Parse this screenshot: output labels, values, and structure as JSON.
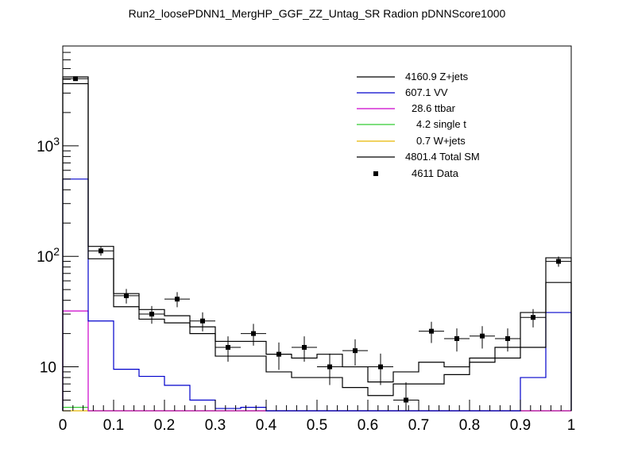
{
  "chart_data": {
    "type": "histogram",
    "title": "Run2_loosePDNN1_MergHP_GGF_ZZ_Untag_SR Radion  pDNNScore1000",
    "xlabel": "",
    "ylabel": "",
    "xlim": [
      0,
      1
    ],
    "ylim": [
      4,
      8000
    ],
    "y_scale": "log",
    "bin_edges": [
      0,
      0.05,
      0.1,
      0.15,
      0.2,
      0.25,
      0.3,
      0.35,
      0.4,
      0.45,
      0.5,
      0.55,
      0.6,
      0.65,
      0.7,
      0.75,
      0.8,
      0.85,
      0.9,
      0.95,
      1.0
    ],
    "x_ticks": [
      {
        "value": 0,
        "label": "0"
      },
      {
        "value": 0.1,
        "label": "0.1"
      },
      {
        "value": 0.2,
        "label": "0.2"
      },
      {
        "value": 0.3,
        "label": "0.3"
      },
      {
        "value": 0.4,
        "label": "0.4"
      },
      {
        "value": 0.5,
        "label": "0.5"
      },
      {
        "value": 0.6,
        "label": "0.6"
      },
      {
        "value": 0.7,
        "label": "0.7"
      },
      {
        "value": 0.8,
        "label": "0.8"
      },
      {
        "value": 0.9,
        "label": "0.9"
      },
      {
        "value": 1,
        "label": "1"
      }
    ],
    "y_ticks": [
      {
        "value": 10,
        "label": "10",
        "sup": ""
      },
      {
        "value": 100,
        "label": "10",
        "sup": "2"
      },
      {
        "value": 1000,
        "label": "10",
        "sup": "3"
      }
    ],
    "series": [
      {
        "name": "Z+jets",
        "yield": "4160.9",
        "color": "#000000",
        "values": [
          3650,
          95,
          35,
          27,
          25,
          20,
          12.5,
          12.5,
          9,
          8,
          8,
          6.5,
          5.5,
          7,
          7,
          8.5,
          11,
          12,
          15,
          58
        ]
      },
      {
        "name": "VV",
        "yield": "607.1",
        "color": "#0000cc",
        "values": [
          500,
          26,
          9.5,
          8.2,
          6.8,
          5,
          4.2,
          4.3,
          3.9,
          3.7,
          3.9,
          3.5,
          3.6,
          3.4,
          3.4,
          3.8,
          4.0,
          3.5,
          8,
          31
        ]
      },
      {
        "name": "ttbar",
        "yield": "28.6",
        "color": "#cc00cc",
        "values": [
          32,
          2,
          1.5,
          1,
          1,
          1,
          1,
          1,
          1,
          1,
          1,
          1,
          1,
          1,
          1,
          1,
          1,
          1,
          1,
          1
        ]
      },
      {
        "name": "single t",
        "yield": "4.2",
        "color": "#33cc33",
        "values": [
          4.3,
          1,
          1,
          1,
          1,
          1,
          1,
          1,
          1,
          1,
          1,
          1,
          1,
          1,
          1,
          1,
          1,
          1,
          1,
          1
        ]
      },
      {
        "name": "W+jets",
        "yield": "0.7",
        "color": "#e6b800",
        "values": [
          1,
          1,
          1,
          1,
          1,
          1,
          1,
          1,
          1,
          1,
          1,
          1,
          1,
          1,
          1,
          1,
          1,
          1,
          1,
          1
        ]
      },
      {
        "name": "Total SM",
        "yield": "4801.4",
        "color": "#000000",
        "values": [
          4200,
          123,
          46,
          33,
          29,
          23,
          17,
          17,
          13,
          12,
          13,
          10,
          7.3,
          9,
          11,
          10,
          12,
          15,
          31,
          97
        ]
      }
    ],
    "data_points": {
      "name": "Data",
      "yield": "4611",
      "x": [
        0.025,
        0.075,
        0.125,
        0.175,
        0.225,
        0.275,
        0.325,
        0.375,
        0.425,
        0.475,
        0.525,
        0.575,
        0.625,
        0.675,
        0.725,
        0.775,
        0.825,
        0.875,
        0.925,
        0.975
      ],
      "y": [
        4050,
        112,
        44,
        30,
        41,
        26,
        15,
        20,
        13,
        15,
        10,
        14,
        10,
        5,
        21,
        18,
        19,
        18,
        28,
        90
      ],
      "x_err": 0.025
    },
    "legend_position": "top-right"
  }
}
